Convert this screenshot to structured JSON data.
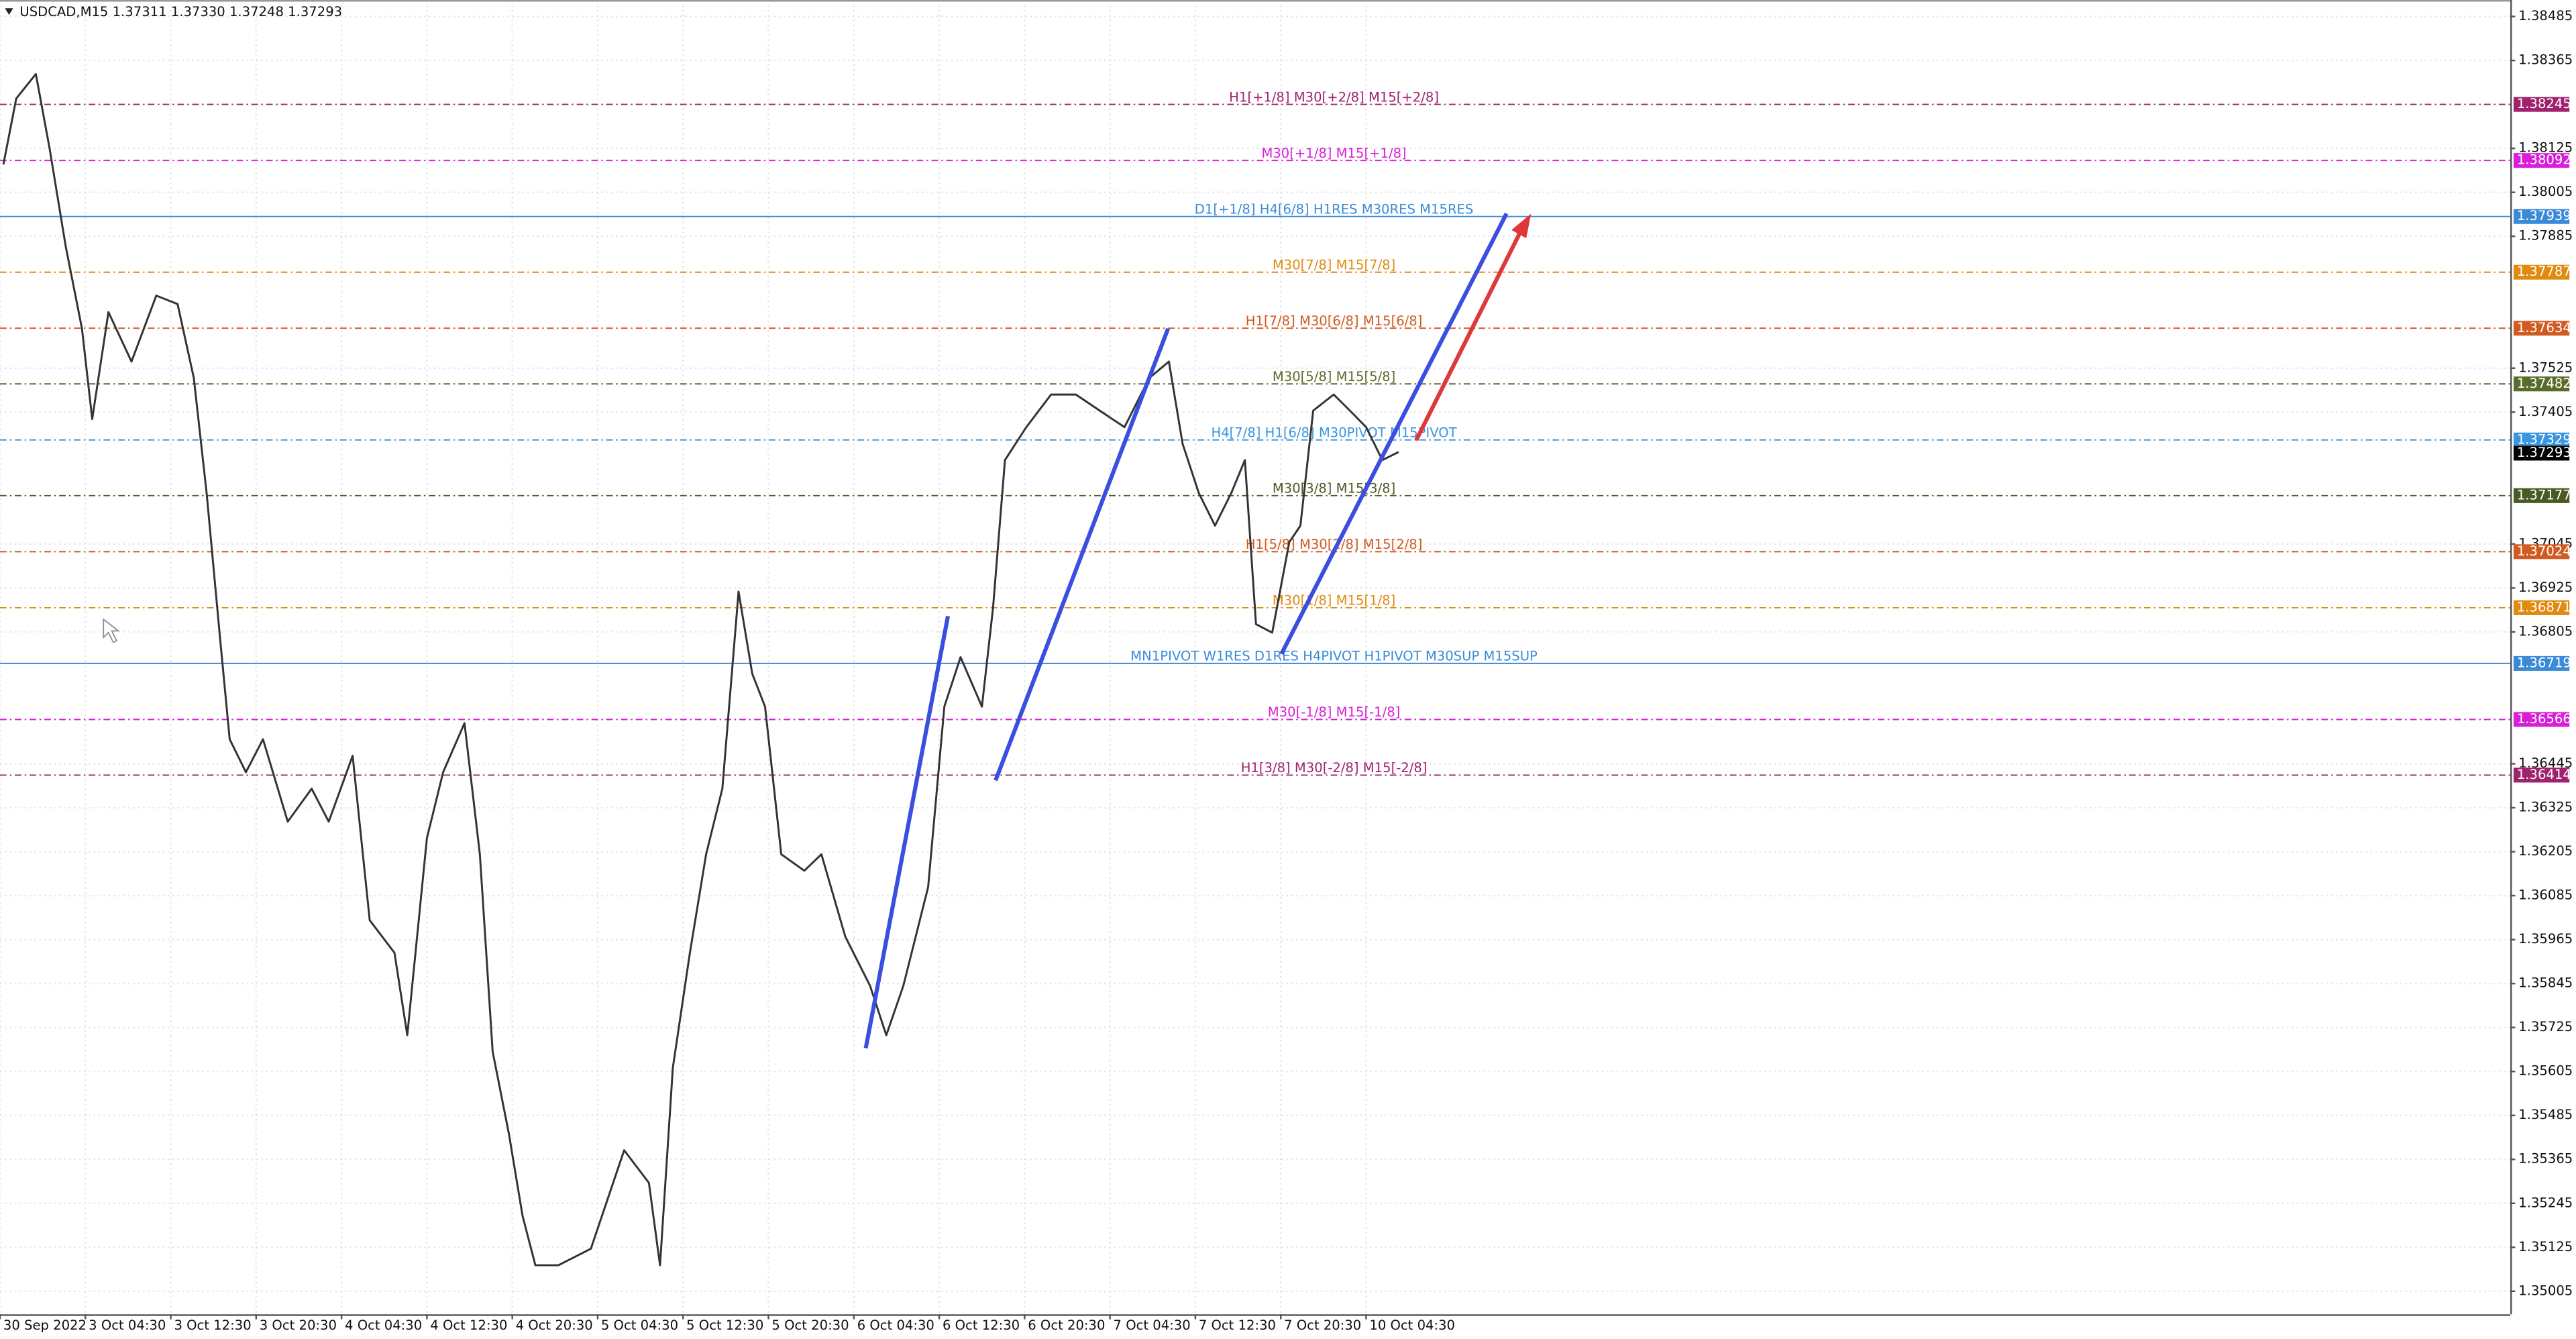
{
  "chart_data": {
    "type": "line",
    "title": "USDCAD,M15 1.37311 1.37330 1.37248 1.37293",
    "grid": true,
    "xlim": [
      0,
      29.4
    ],
    "xticks": [
      {
        "value": 0,
        "label": "30 Sep 2022"
      },
      {
        "value": 1,
        "label": "3 Oct 04:30"
      },
      {
        "value": 2,
        "label": "3 Oct 12:30"
      },
      {
        "value": 3,
        "label": "3 Oct 20:30"
      },
      {
        "value": 4,
        "label": "4 Oct 04:30"
      },
      {
        "value": 5,
        "label": "4 Oct 12:30"
      },
      {
        "value": 6,
        "label": "4 Oct 20:30"
      },
      {
        "value": 7,
        "label": "5 Oct 04:30"
      },
      {
        "value": 8,
        "label": "5 Oct 12:30"
      },
      {
        "value": 9,
        "label": "5 Oct 20:30"
      },
      {
        "value": 10,
        "label": "6 Oct 04:30"
      },
      {
        "value": 11,
        "label": "6 Oct 12:30"
      },
      {
        "value": 12,
        "label": "6 Oct 20:30"
      },
      {
        "value": 13,
        "label": "7 Oct 04:30"
      },
      {
        "value": 14,
        "label": "7 Oct 12:30"
      },
      {
        "value": 15,
        "label": "7 Oct 20:30"
      },
      {
        "value": 16,
        "label": "10 Oct 04:30"
      }
    ],
    "ylim": [
      1.34942,
      1.3853
    ],
    "yticks": [
      1.38485,
      1.38365,
      1.38125,
      1.38005,
      1.37885,
      1.37525,
      1.37405,
      1.37045,
      1.36925,
      1.36805,
      1.36445,
      1.36325,
      1.36205,
      1.36085,
      1.35965,
      1.35845,
      1.35725,
      1.35605,
      1.35485,
      1.35365,
      1.35245,
      1.35125,
      1.35005
    ],
    "series": [
      {
        "name": "USDCAD",
        "color": "#333333",
        "x": [
          0.04,
          0.19,
          0.42,
          0.58,
          0.77,
          0.96,
          1.08,
          1.27,
          1.54,
          1.83,
          2.08,
          2.27,
          2.42,
          2.58,
          2.69,
          2.88,
          3.08,
          3.37,
          3.65,
          3.85,
          4.13,
          4.33,
          4.62,
          4.77,
          5,
          5.19,
          5.44,
          5.62,
          5.77,
          5.96,
          6.12,
          6.27,
          6.54,
          6.92,
          7.31,
          7.6,
          7.73,
          7.88,
          8.08,
          8.27,
          8.46,
          8.65,
          8.81,
          8.96,
          9.15,
          9.42,
          9.62,
          9.9,
          10.19,
          10.38,
          10.58,
          10.87,
          11.06,
          11.25,
          11.5,
          11.63,
          11.77,
          12.02,
          12.31,
          12.6,
          12.88,
          13.17,
          13.46,
          13.69,
          13.85,
          14.04,
          14.23,
          14.42,
          14.58,
          14.71,
          14.9,
          15.1,
          15.23,
          15.38,
          15.62,
          15.81,
          16,
          16.19,
          16.38
        ],
        "values": [
          1.38081,
          1.38261,
          1.38328,
          1.38126,
          1.37857,
          1.37633,
          1.37386,
          1.37678,
          1.37543,
          1.37723,
          1.377,
          1.37498,
          1.37184,
          1.36781,
          1.36512,
          1.36422,
          1.36512,
          1.36287,
          1.36377,
          1.36287,
          1.36467,
          1.36018,
          1.35929,
          1.35704,
          1.36242,
          1.36422,
          1.36556,
          1.36198,
          1.35659,
          1.35435,
          1.35211,
          1.35076,
          1.35076,
          1.35121,
          1.3539,
          1.35301,
          1.35076,
          1.35615,
          1.35929,
          1.36198,
          1.36377,
          1.36915,
          1.36691,
          1.36601,
          1.36198,
          1.36153,
          1.36198,
          1.35973,
          1.35839,
          1.35704,
          1.35839,
          1.36108,
          1.36601,
          1.36736,
          1.36601,
          1.3687,
          1.37274,
          1.37364,
          1.37453,
          1.37453,
          1.37409,
          1.37364,
          1.37498,
          1.37543,
          1.37319,
          1.37184,
          1.37095,
          1.37184,
          1.37274,
          1.36826,
          1.36803,
          1.3705,
          1.37095,
          1.37409,
          1.37453,
          1.37409,
          1.37364,
          1.37274,
          1.37296
        ]
      }
    ],
    "levels": [
      {
        "price": 1.38245,
        "label": "H1[+1/8] M30[+2/8] M15[+2/8]",
        "color": "#a0226e",
        "dashed": true
      },
      {
        "price": 1.38092,
        "label": "M30[+1/8] M15[+1/8]",
        "color": "#d81ed8",
        "dashed": true
      },
      {
        "price": 1.37939,
        "label": "D1[+1/8] H4[6/8] H1RES M30RES M15RES",
        "color": "#3a8ad8",
        "dashed": false
      },
      {
        "price": 1.37787,
        "label": "M30[7/8] M15[7/8]",
        "color": "#e08a10",
        "dashed": true
      },
      {
        "price": 1.37634,
        "label": "H1[7/8] M30[6/8] M15[6/8]",
        "color": "#d05a20",
        "dashed": true
      },
      {
        "price": 1.37482,
        "label": "M30[5/8] M15[5/8]",
        "color": "#5a6b2a",
        "dashed": true
      },
      {
        "price": 1.37329,
        "label": "H4[7/8] H1[6/8] M30PIVOT M15PIVOT",
        "color": "#3a96e0",
        "dashed": true
      },
      {
        "price": 1.37177,
        "label": "M30[3/8] M15[3/8]",
        "color": "#4a5a22",
        "dashed": true
      },
      {
        "price": 1.37024,
        "label": "H1[5/8] M30[2/8] M15[2/8]",
        "color": "#d05a20",
        "dashed": true
      },
      {
        "price": 1.36871,
        "label": "M30[1/8] M15[1/8]",
        "color": "#e08a10",
        "dashed": true
      },
      {
        "price": 1.36719,
        "label": "MN1PIVOT W1RES D1RES H4PIVOT H1PIVOT M30SUP M15SUP",
        "color": "#3a8ad8",
        "dashed": false
      },
      {
        "price": 1.36566,
        "label": "M30[-1/8] M15[-1/8]",
        "color": "#d81ed8",
        "dashed": true
      },
      {
        "price": 1.36414,
        "label": "H1[3/8] M30[-2/8] M15[-2/8]",
        "color": "#a0226e",
        "dashed": true
      }
    ],
    "last_price": 1.37293
  }
}
